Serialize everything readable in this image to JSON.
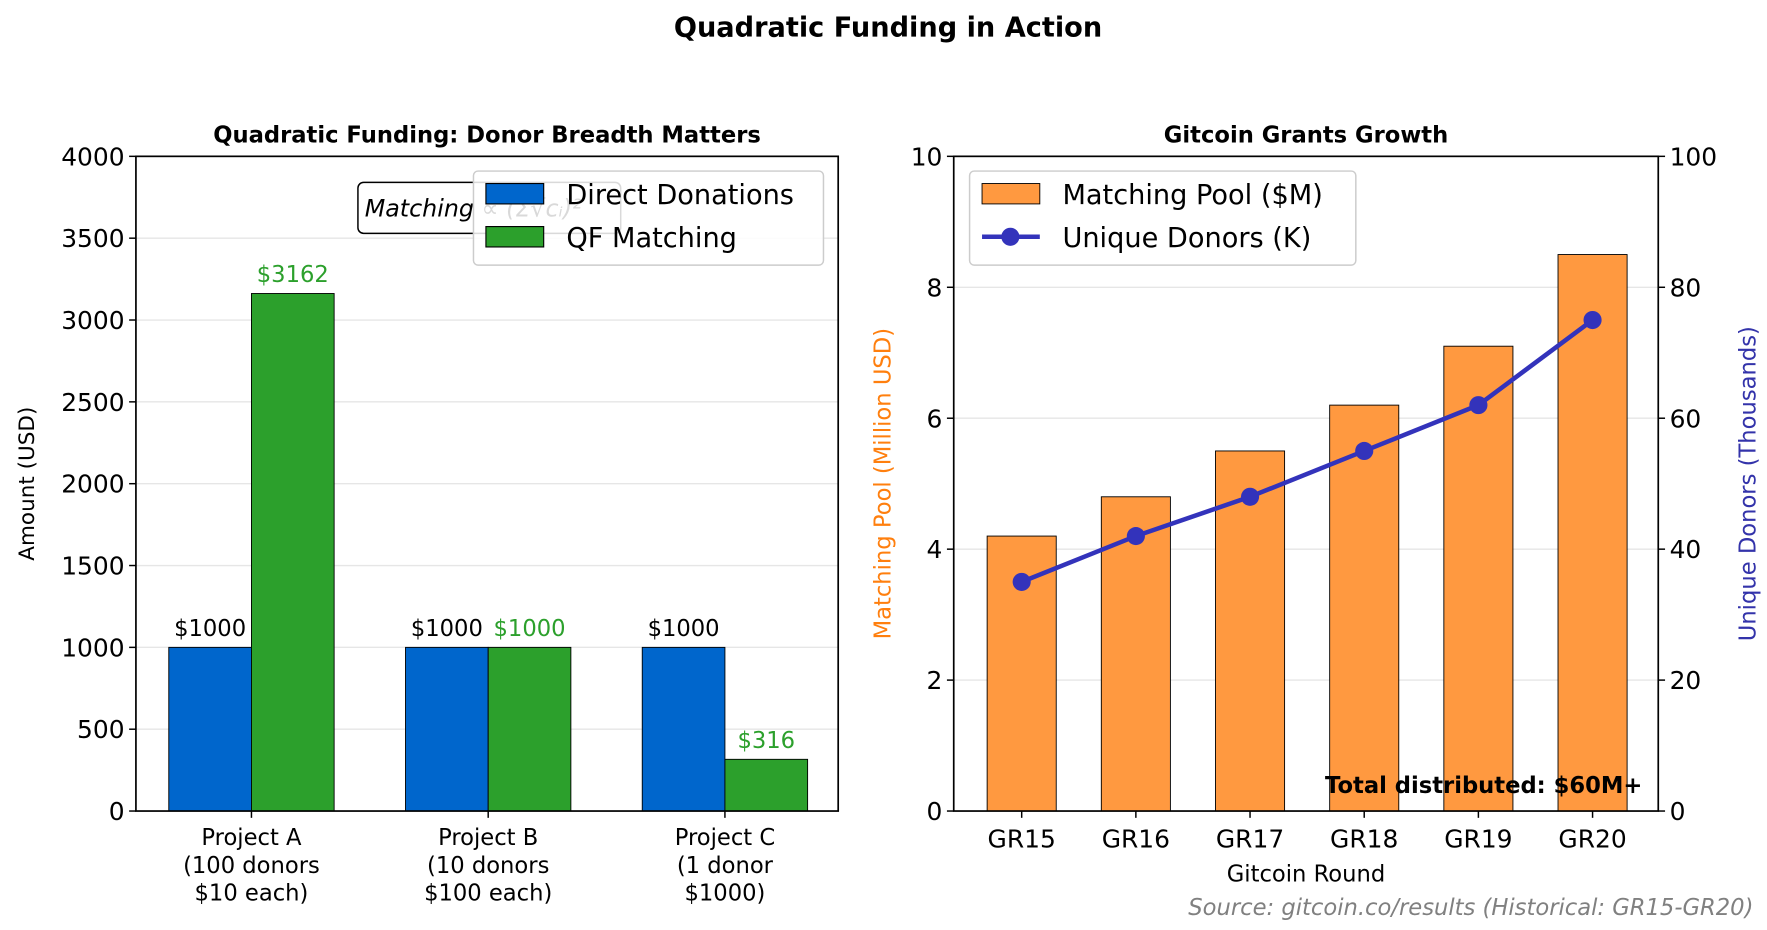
{
  "title": "Quadratic Funding in Action",
  "source_note": "Source: gitcoin.co/results (Historical: GR15-GR20)",
  "chart_data": [
    {
      "type": "bar",
      "title": "Quadratic Funding: Donor Breadth Matters",
      "xlabel": "",
      "ylabel": "Amount (USD)",
      "ylim": [
        0,
        4000
      ],
      "yticks": [
        "0",
        "500",
        "1000",
        "1500",
        "2000",
        "2500",
        "3000",
        "3500",
        "4000"
      ],
      "categories": [
        [
          "Project A",
          "(100 donors",
          "$10 each)"
        ],
        [
          "Project B",
          "(10 donors",
          "$100 each)"
        ],
        [
          "Project C",
          "(1 donor",
          "$1000)"
        ]
      ],
      "series": [
        {
          "name": "Direct Donations",
          "color": "#0066cc",
          "label_color": "#000000",
          "values": [
            1000,
            1000,
            1000
          ],
          "labels": [
            "$1000",
            "$1000",
            "$1000"
          ]
        },
        {
          "name": "QF Matching",
          "color": "#2ca02c",
          "label_color": "#2ca02c",
          "values": [
            3162,
            1000,
            316
          ],
          "labels": [
            "$3162",
            "$1000",
            "$316"
          ]
        }
      ],
      "annotation": "Matching ∝ (Σ√cᵢ)²",
      "legend": "top-right",
      "grid": "y"
    },
    {
      "type": "bar+line",
      "title": "Gitcoin Grants Growth",
      "xlabel": "Gitcoin Round",
      "ylabel": "Matching Pool (Million USD)",
      "ylabel_color": "#ff7f0e",
      "y2label": "Unique Donors (Thousands)",
      "y2label_color": "#3333aa",
      "ylim": [
        0,
        10
      ],
      "y2lim": [
        0,
        100
      ],
      "yticks": [
        "0",
        "2",
        "4",
        "6",
        "8",
        "10"
      ],
      "y2ticks": [
        "0",
        "20",
        "40",
        "60",
        "80",
        "100"
      ],
      "categories": [
        "GR15",
        "GR16",
        "GR17",
        "GR18",
        "GR19",
        "GR20"
      ],
      "series": [
        {
          "name": "Matching Pool ($M)",
          "type": "bar",
          "axis": "left",
          "color": "#ff9940",
          "values": [
            4.2,
            4.8,
            5.5,
            6.2,
            7.1,
            8.5
          ]
        },
        {
          "name": "Unique Donors (K)",
          "type": "line",
          "axis": "right",
          "color": "#3333bb",
          "values": [
            35,
            42,
            48,
            55,
            62,
            75
          ]
        }
      ],
      "annotation": "Total distributed: $60M+",
      "legend": "top-left",
      "grid": "y"
    }
  ]
}
